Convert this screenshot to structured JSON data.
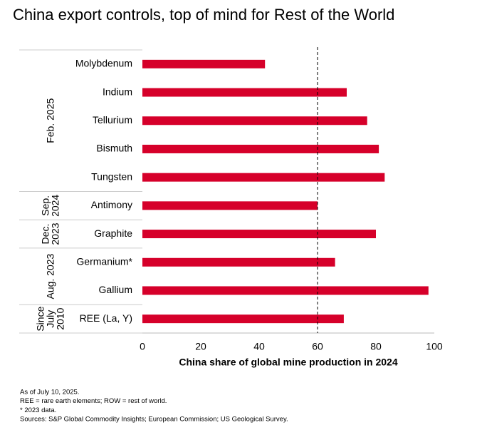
{
  "chart_data": {
    "type": "bar",
    "orientation": "horizontal",
    "title": "China export controls, top of mind for Rest of the World",
    "categories": [
      "Molybdenum",
      "Indium",
      "Tellurium",
      "Bismuth",
      "Tungsten",
      "Antimony",
      "Graphite",
      "Germanium*",
      "Gallium",
      "REE (La, Y)"
    ],
    "category_groups": [
      [
        "Feb. 2025"
      ],
      [
        "Feb. 2025"
      ],
      [
        "Feb. 2025"
      ],
      [
        "Feb. 2025"
      ],
      [
        "Feb. 2025"
      ],
      [
        "Sep.",
        "2024"
      ],
      [
        "Dec.",
        "2023"
      ],
      [
        "Aug. 2023"
      ],
      [
        "Aug. 2023"
      ],
      [
        "Since",
        "July",
        "2010"
      ]
    ],
    "values": [
      42,
      70,
      77,
      81,
      83,
      60,
      80,
      66,
      98,
      69
    ],
    "color": "#d6002a",
    "xlim": [
      0,
      100
    ],
    "xticks": [
      0,
      20,
      40,
      60,
      80,
      100
    ],
    "xlabel": "China share of global mine production in 2024",
    "reference_line": 60,
    "footnotes": [
      "As of July 10, 2025.",
      "REE = rare earth elements; ROW = rest of world.",
      "* 2023 data.",
      "Sources: S&P Global Commodity Insights; European Commission; US Geological Survey."
    ]
  }
}
